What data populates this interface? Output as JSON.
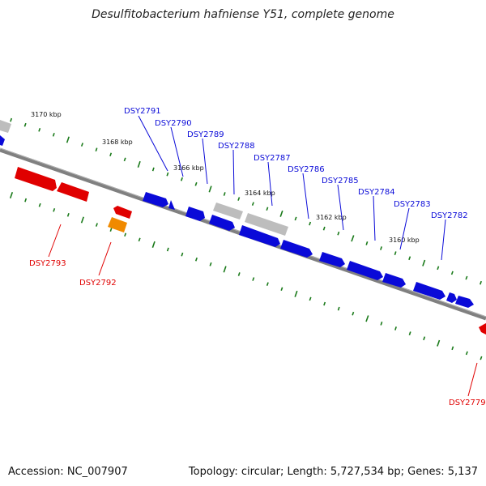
{
  "title": "Desulfitobacterium hafniense Y51, complete genome",
  "footer": {
    "accession": "Accession: NC_007907",
    "info": "Topology: circular; Length: 5,727,534 bp; Genes: 5,137"
  },
  "colors": {
    "forward": "#0a0ad8",
    "reverse": "#e00000",
    "rna": "#f08a00",
    "pseudo": "#bdbdbd",
    "backbone": "#808080",
    "ticks": "#1a7a1a"
  },
  "scale": {
    "unit": "kbp",
    "labels": [
      "3170 kbp",
      "3168 kbp",
      "3166 kbp",
      "3164 kbp",
      "3162 kbp",
      "3160 kbp"
    ]
  },
  "genes": [
    {
      "label": "DSY2791",
      "strand": "forward"
    },
    {
      "label": "DSY2790",
      "strand": "forward"
    },
    {
      "label": "DSY2789",
      "strand": "forward"
    },
    {
      "label": "DSY2788",
      "strand": "forward"
    },
    {
      "label": "DSY2787",
      "strand": "forward"
    },
    {
      "label": "DSY2786",
      "strand": "forward"
    },
    {
      "label": "DSY2785",
      "strand": "forward"
    },
    {
      "label": "DSY2784",
      "strand": "forward"
    },
    {
      "label": "DSY2783",
      "strand": "forward"
    },
    {
      "label": "DSY2782",
      "strand": "forward"
    },
    {
      "label": "DSY2793",
      "strand": "reverse"
    },
    {
      "label": "DSY2792",
      "strand": "reverse"
    },
    {
      "label": "DSY2779",
      "strand": "reverse"
    }
  ]
}
